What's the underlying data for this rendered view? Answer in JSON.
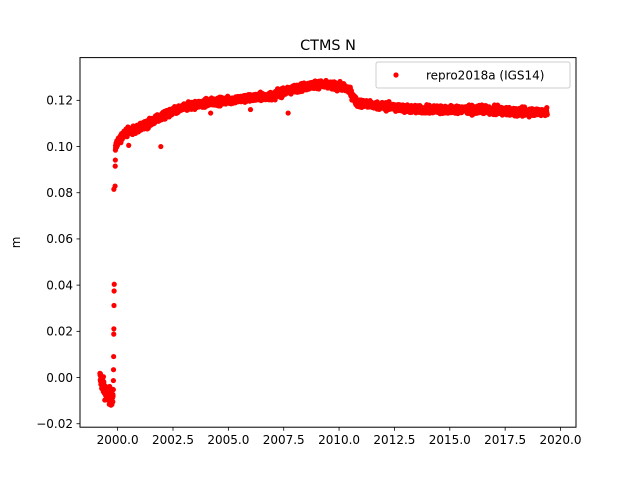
{
  "chart_data": {
    "type": "scatter",
    "title": "CTMS N",
    "xlabel": "",
    "ylabel": "m",
    "xlim": [
      1998.3,
      2020.7
    ],
    "ylim": [
      -0.0215,
      0.1385
    ],
    "xticks": [
      2000.0,
      2002.5,
      2005.0,
      2007.5,
      2010.0,
      2012.5,
      2015.0,
      2017.5,
      2020.0
    ],
    "xtick_labels": [
      "2000.0",
      "2002.5",
      "2005.0",
      "2007.5",
      "2010.0",
      "2012.5",
      "2015.0",
      "2017.5",
      "2020.0"
    ],
    "yticks": [
      -0.02,
      0.0,
      0.02,
      0.04,
      0.06,
      0.08,
      0.1,
      0.12
    ],
    "ytick_labels": [
      "−0.02",
      "0.00",
      "0.02",
      "0.04",
      "0.06",
      "0.08",
      "0.10",
      "0.12"
    ],
    "grid": false,
    "legend_position": "top-right",
    "marker_color": "#ff0000",
    "series": [
      {
        "name": "repro2018a (IGS14)",
        "trend": [
          [
            1999.2,
            0.0
          ],
          [
            1999.5,
            -0.007
          ],
          [
            1999.8,
            -0.009
          ],
          [
            1999.9,
            0.1
          ],
          [
            2000.3,
            0.106
          ],
          [
            2001.0,
            0.108
          ],
          [
            2002.0,
            0.113
          ],
          [
            2003.0,
            0.117
          ],
          [
            2004.0,
            0.119
          ],
          [
            2005.0,
            0.12
          ],
          [
            2006.0,
            0.121
          ],
          [
            2007.0,
            0.122
          ],
          [
            2008.0,
            0.125
          ],
          [
            2009.0,
            0.127
          ],
          [
            2010.0,
            0.126
          ],
          [
            2010.4,
            0.125
          ],
          [
            2010.8,
            0.119
          ],
          [
            2011.5,
            0.118
          ],
          [
            2012.5,
            0.117
          ],
          [
            2013.5,
            0.116
          ],
          [
            2015.0,
            0.116
          ],
          [
            2016.5,
            0.116
          ],
          [
            2018.0,
            0.115
          ],
          [
            2019.4,
            0.115
          ]
        ],
        "gaps": [
          [
            1999.85,
            1999.88
          ]
        ],
        "outliers": [
          [
            1999.83,
            0.0815
          ],
          [
            2001.95,
            0.1
          ],
          [
            2007.7,
            0.1145
          ],
          [
            2000.5,
            0.1005
          ],
          [
            2004.2,
            0.1145
          ],
          [
            2006.0,
            0.116
          ]
        ]
      }
    ]
  }
}
